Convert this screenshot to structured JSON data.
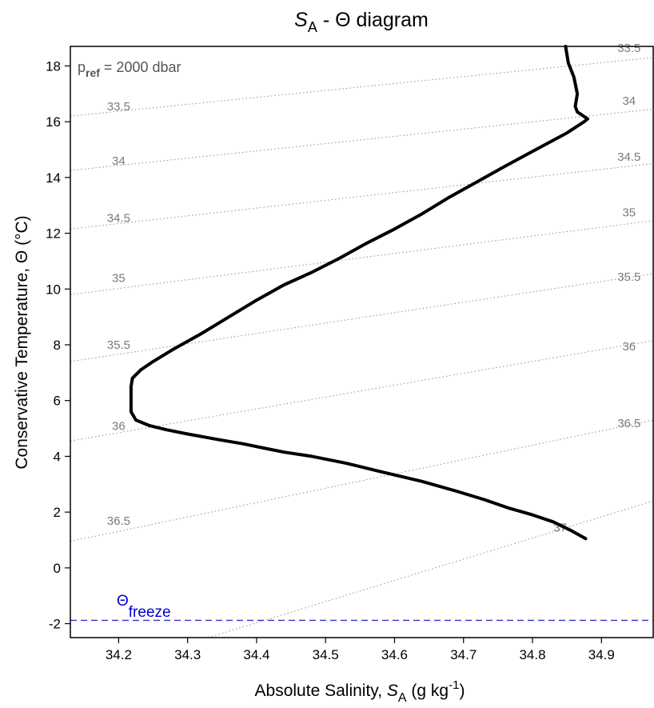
{
  "chart_data": {
    "type": "line",
    "title": {
      "main": "S",
      "sub": "A",
      "rest": " - Θ diagram"
    },
    "xlabel": {
      "main": "Absolute Salinity, ",
      "var": "S",
      "sub": "A",
      "units_pre": " (g kg",
      "units_sup": "-1",
      "units_post": ")"
    },
    "ylabel": "Conservative Temperature,  Θ (°C)",
    "xlim": [
      34.13,
      34.975
    ],
    "ylim": [
      -2.5,
      18.7
    ],
    "x_ticks": [
      "34.2",
      "34.3",
      "34.4",
      "34.5",
      "34.6",
      "34.7",
      "34.8",
      "34.9"
    ],
    "y_ticks": [
      "-2",
      "0",
      "2",
      "4",
      "6",
      "8",
      "10",
      "12",
      "14",
      "16",
      "18"
    ],
    "reference_pressure": {
      "main": "p",
      "sub": "ref",
      "rest": " = 2000 dbar"
    },
    "freezing_line": {
      "label_main": "Θ",
      "label_sub": "freeze",
      "value": -1.88,
      "color": "#3333cc"
    },
    "profile_color": "#000000",
    "isopycnal_color": "#909090",
    "series": [
      {
        "x": [
          34.877,
          34.855,
          34.83,
          34.8,
          34.765,
          34.73,
          34.69,
          34.64,
          34.58,
          34.53,
          34.48,
          34.44,
          34.41,
          34.38,
          34.34,
          34.3,
          34.27,
          34.245,
          34.225,
          34.218,
          34.218,
          34.22,
          34.232,
          34.25,
          34.28,
          34.32,
          34.36,
          34.4,
          34.44,
          34.48,
          34.52,
          34.56,
          34.6,
          34.64,
          34.68,
          34.72,
          34.76,
          34.79,
          34.82,
          34.85,
          34.875,
          34.88,
          34.865,
          34.862,
          34.865,
          34.86,
          34.852,
          34.848
        ],
        "y": [
          1.05,
          1.35,
          1.65,
          1.9,
          2.15,
          2.45,
          2.75,
          3.1,
          3.45,
          3.75,
          4.0,
          4.15,
          4.3,
          4.45,
          4.62,
          4.8,
          4.95,
          5.1,
          5.3,
          5.6,
          6.5,
          6.8,
          7.1,
          7.4,
          7.85,
          8.4,
          9.0,
          9.6,
          10.15,
          10.6,
          11.1,
          11.65,
          12.15,
          12.7,
          13.3,
          13.85,
          14.4,
          14.8,
          15.2,
          15.6,
          16.0,
          16.1,
          16.35,
          16.55,
          17.0,
          17.6,
          18.1,
          18.7
        ]
      }
    ],
    "isopycnals": [
      {
        "label": "33.5",
        "left_y": 16.2,
        "right_y": 18.3,
        "labels": [
          {
            "x": 34.2,
            "y": 16.4,
            "text": "33.5"
          },
          {
            "x": 34.94,
            "y": 18.5,
            "text": "33.5"
          }
        ]
      },
      {
        "label": "34",
        "left_y": 14.25,
        "right_y": 16.45,
        "labels": [
          {
            "x": 34.2,
            "y": 14.45,
            "text": "34"
          },
          {
            "x": 34.94,
            "y": 16.6,
            "text": "34"
          }
        ]
      },
      {
        "label": "34.5",
        "left_y": 12.15,
        "right_y": 14.5,
        "labels": [
          {
            "x": 34.2,
            "y": 12.4,
            "text": "34.5"
          },
          {
            "x": 34.94,
            "y": 14.6,
            "text": "34.5"
          }
        ]
      },
      {
        "label": "35",
        "left_y": 9.8,
        "right_y": 12.45,
        "labels": [
          {
            "x": 34.2,
            "y": 10.25,
            "text": "35"
          },
          {
            "x": 34.94,
            "y": 12.6,
            "text": "35"
          }
        ]
      },
      {
        "label": "35.5",
        "left_y": 7.4,
        "right_y": 10.55,
        "labels": [
          {
            "x": 34.2,
            "y": 7.85,
            "text": "35.5"
          },
          {
            "x": 34.94,
            "y": 10.3,
            "text": "35.5"
          }
        ]
      },
      {
        "label": "36",
        "left_y": 4.55,
        "right_y": 8.15,
        "labels": [
          {
            "x": 34.2,
            "y": 4.95,
            "text": "36"
          },
          {
            "x": 34.94,
            "y": 7.8,
            "text": "36"
          }
        ]
      },
      {
        "label": "36.5",
        "left_y": 0.95,
        "right_y": 5.3,
        "labels": [
          {
            "x": 34.2,
            "y": 1.55,
            "text": "36.5"
          },
          {
            "x": 34.94,
            "y": 5.05,
            "text": "36.5"
          }
        ]
      },
      {
        "label": "37",
        "left_x": 34.33,
        "left_y": -2.5,
        "right_y": 2.4,
        "labels": [
          {
            "x": 34.84,
            "y": 1.3,
            "text": "37"
          }
        ]
      }
    ]
  }
}
